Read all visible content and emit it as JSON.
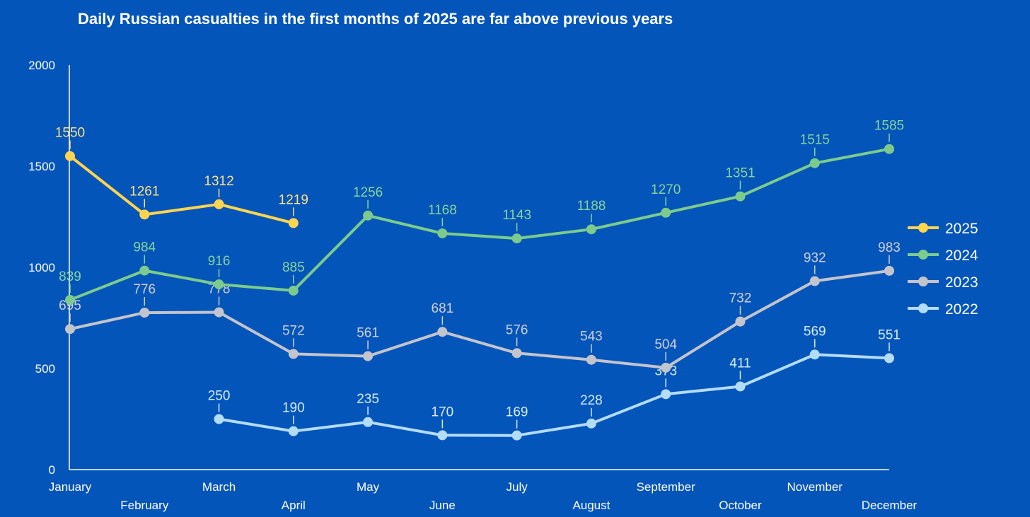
{
  "chart_data": {
    "type": "line",
    "title": "Daily Russian casualties in the first months of 2025 are far above previous years",
    "xlabel": "",
    "ylabel": "",
    "ylim": [
      0,
      2000
    ],
    "yticks": [
      0,
      500,
      1000,
      1500,
      2000
    ],
    "categories": [
      "January",
      "February",
      "March",
      "April",
      "May",
      "June",
      "July",
      "August",
      "September",
      "October",
      "November",
      "December"
    ],
    "legend_position": "right",
    "series": [
      {
        "name": "2025",
        "color": "#ffd54f",
        "label_color": "#ffe082",
        "values": [
          1550,
          1261,
          1312,
          1219,
          null,
          null,
          null,
          null,
          null,
          null,
          null,
          null
        ]
      },
      {
        "name": "2024",
        "color": "#7ccb8c",
        "label_color": "#86d39a",
        "values": [
          839,
          984,
          916,
          885,
          1256,
          1168,
          1143,
          1188,
          1270,
          1351,
          1515,
          1585
        ]
      },
      {
        "name": "2023",
        "color": "#c4c4cc",
        "label_color": "#cfcfd8",
        "values": [
          695,
          776,
          778,
          572,
          561,
          681,
          576,
          543,
          504,
          732,
          932,
          983
        ]
      },
      {
        "name": "2022",
        "color": "#b3dcf7",
        "label_color": "#d4ebfa",
        "values": [
          null,
          null,
          250,
          190,
          235,
          170,
          169,
          228,
          373,
          411,
          569,
          551
        ]
      }
    ]
  }
}
